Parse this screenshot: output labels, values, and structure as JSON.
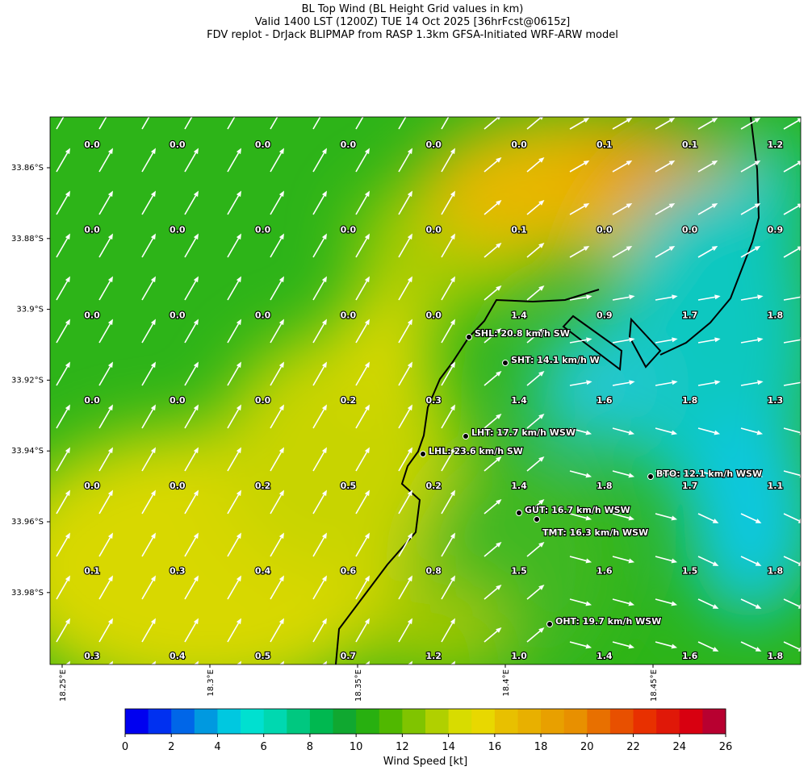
{
  "header": {
    "title": [
      "BL Top Wind (BL Height Grid values in km)",
      "Valid 1400 LST (1200Z) TUE 14 Oct 2025 [36hrFcst@0615z]",
      "FDV replot - DrJack BLIPMAP from RASP 1.3km GFSA-Initiated WRF-ARW model"
    ]
  },
  "axes": {
    "y_labels": [
      "33.86°S",
      "33.88°S",
      "33.9°S",
      "33.92°S",
      "33.94°S",
      "33.96°S",
      "33.98°S"
    ],
    "x_labels": [
      "18.25°E",
      "18.3°E",
      "18.35°E",
      "18.4°E",
      "18.45°E"
    ]
  },
  "grid_values": [
    [
      "0.0",
      "0.0",
      "0.0",
      "0.0",
      "0.0",
      "0.0",
      "0.1",
      "0.1",
      "1.2"
    ],
    [
      "0.0",
      "0.0",
      "0.0",
      "0.0",
      "0.0",
      "0.1",
      "0.0",
      "0.0",
      "0.9"
    ],
    [
      "0.0",
      "0.0",
      "0.0",
      "0.0",
      "0.0",
      "1.4",
      "0.9",
      "1.7",
      "1.8"
    ],
    [
      "0.0",
      "0.0",
      "0.0",
      "0.2",
      "0.3",
      "1.4",
      "1.6",
      "1.8",
      "1.3"
    ],
    [
      "0.0",
      "0.0",
      "0.2",
      "0.5",
      "0.2",
      "1.4",
      "1.8",
      "1.7",
      "1.1"
    ],
    [
      "0.1",
      "0.3",
      "0.4",
      "0.6",
      "0.8",
      "1.5",
      "1.6",
      "1.5",
      "1.8"
    ],
    [
      "0.3",
      "0.4",
      "0.5",
      "0.7",
      "1.2",
      "1.0",
      "1.4",
      "1.6",
      "1.8"
    ]
  ],
  "stations": [
    "SHL: 20.8 km/h SW",
    "SHT: 14.1 km/h W",
    "LHT: 17.7 km/h WSW",
    "LHL: 23.6 km/h SW",
    "BTO: 12.1 km/h WSW",
    "GUT: 16.7 km/h WSW",
    "TMT: 16.3 km/h WSW",
    "OHT: 19.7 km/h WSW"
  ],
  "colorbar": {
    "label": "Wind Speed [kt]",
    "ticks": [
      0,
      2,
      4,
      6,
      8,
      10,
      12,
      14,
      16,
      18,
      20,
      22,
      24,
      26
    ],
    "colors": [
      "#0000f0",
      "#0030f0",
      "#0066e8",
      "#0099e0",
      "#00c8e0",
      "#00e0d0",
      "#00d8b0",
      "#00c880",
      "#00b850",
      "#10a830",
      "#28b010",
      "#50b800",
      "#80c400",
      "#b0d000",
      "#d8dc00",
      "#e8d800",
      "#e8c000",
      "#e8b000",
      "#e8a000",
      "#e89000",
      "#e87000",
      "#e85000",
      "#e83000",
      "#e01808",
      "#d80010",
      "#b80030"
    ]
  }
}
